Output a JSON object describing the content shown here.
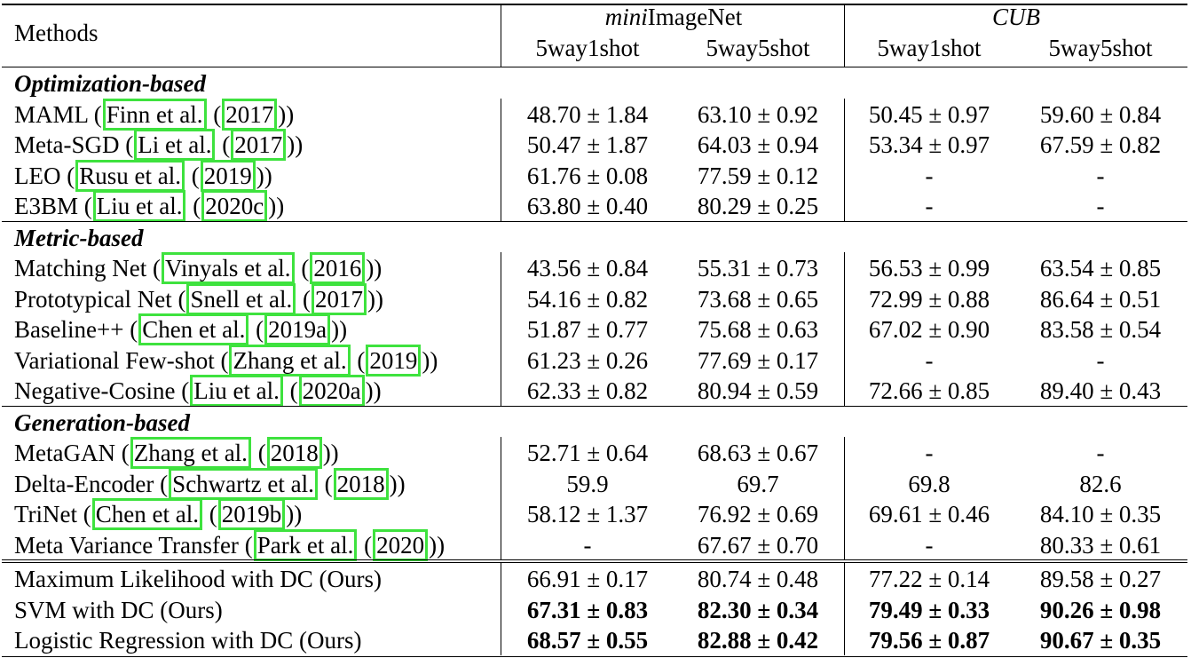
{
  "header": {
    "methods": "Methods",
    "groups": [
      {
        "name_italic": "mini",
        "name_rest": "ImageNet"
      },
      {
        "name_italic": "CUB",
        "name_rest": ""
      }
    ],
    "subcols": [
      "5way1shot",
      "5way5shot",
      "5way1shot",
      "5way5shot"
    ]
  },
  "sections": [
    {
      "title": "Optimization-based",
      "rows": [
        {
          "method": "MAML",
          "author": "Finn et al.",
          "year": "2017",
          "values": [
            "48.70 ± 1.84",
            "63.10 ± 0.92",
            "50.45 ± 0.97",
            "59.60 ± 0.84"
          ]
        },
        {
          "method": "Meta-SGD",
          "author": "Li et al.",
          "year": "2017",
          "values": [
            "50.47 ± 1.87",
            "64.03 ± 0.94",
            "53.34 ± 0.97",
            "67.59 ± 0.82"
          ]
        },
        {
          "method": "LEO",
          "author": "Rusu et al.",
          "year": "2019",
          "values": [
            "61.76 ± 0.08",
            "77.59 ± 0.12",
            "-",
            "-"
          ]
        },
        {
          "method": "E3BM",
          "author": "Liu et al.",
          "year": "2020c",
          "values": [
            "63.80 ± 0.40",
            "80.29 ± 0.25",
            "-",
            "-"
          ]
        }
      ]
    },
    {
      "title": "Metric-based",
      "rows": [
        {
          "method": "Matching Net",
          "author": "Vinyals et al.",
          "year": "2016",
          "values": [
            "43.56 ± 0.84",
            "55.31 ± 0.73",
            "56.53 ± 0.99",
            "63.54 ± 0.85"
          ]
        },
        {
          "method": "Prototypical Net",
          "author": "Snell et al.",
          "year": "2017",
          "values": [
            "54.16 ± 0.82",
            "73.68 ± 0.65",
            "72.99 ± 0.88",
            "86.64 ± 0.51"
          ]
        },
        {
          "method": "Baseline++",
          "author": "Chen et al.",
          "year": "2019a",
          "values": [
            "51.87 ± 0.77",
            "75.68 ± 0.63",
            "67.02 ± 0.90",
            "83.58 ± 0.54"
          ]
        },
        {
          "method": "Variational Few-shot",
          "author": "Zhang et al.",
          "year": "2019",
          "values": [
            "61.23 ± 0.26",
            "77.69 ± 0.17",
            "-",
            "-"
          ]
        },
        {
          "method": "Negative-Cosine",
          "author": "Liu et al.",
          "year": "2020a",
          "values": [
            "62.33 ± 0.82",
            "80.94 ± 0.59",
            "72.66 ± 0.85",
            "89.40 ± 0.43"
          ]
        }
      ]
    },
    {
      "title": "Generation-based",
      "rows": [
        {
          "method": "MetaGAN",
          "author": "Zhang et al.",
          "year": "2018",
          "values": [
            "52.71 ± 0.64",
            "68.63 ± 0.67",
            "-",
            "-"
          ]
        },
        {
          "method": "Delta-Encoder",
          "author": "Schwartz et al.",
          "year": "2018",
          "values": [
            "59.9",
            "69.7",
            "69.8",
            "82.6"
          ]
        },
        {
          "method": "TriNet",
          "author": "Chen et al.",
          "year": "2019b",
          "values": [
            "58.12 ± 1.37",
            "76.92 ± 0.69",
            "69.61 ± 0.46",
            "84.10 ± 0.35"
          ]
        },
        {
          "method": "Meta Variance Transfer",
          "author": "Park et al.",
          "year": "2020",
          "values": [
            "-",
            "67.67 ± 0.70",
            "-",
            "80.33 ± 0.61"
          ]
        }
      ]
    }
  ],
  "ours": [
    {
      "method": "Maximum Likelihood with DC (Ours)",
      "bold": false,
      "values": [
        "66.91 ± 0.17",
        "80.74 ± 0.48",
        "77.22 ± 0.14",
        "89.58 ± 0.27"
      ]
    },
    {
      "method": "SVM with DC (Ours)",
      "bold": true,
      "values": [
        "67.31 ± 0.83",
        "82.30 ± 0.34",
        "79.49 ± 0.33",
        "90.26 ± 0.98"
      ]
    },
    {
      "method": "Logistic Regression with DC (Ours)",
      "bold": true,
      "values": [
        "68.57 ± 0.55",
        "82.88 ± 0.42",
        "79.56 ± 0.87",
        "90.67 ± 0.35"
      ]
    }
  ],
  "colors": {
    "citation_box": "#3ee23e",
    "rule": "#000000"
  }
}
